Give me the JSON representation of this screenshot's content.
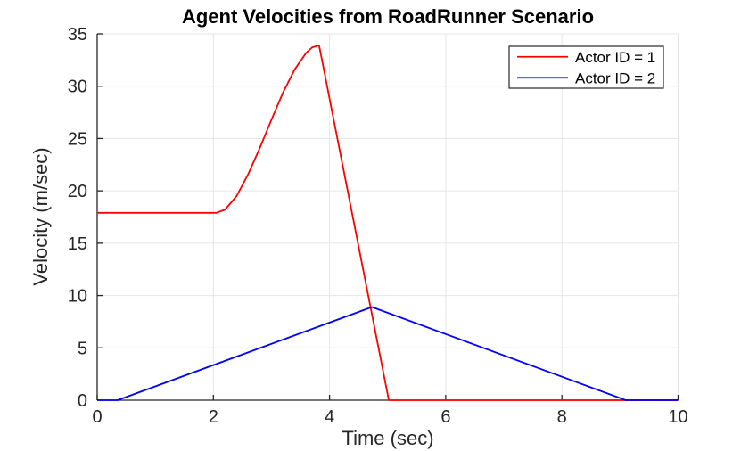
{
  "chart_data": {
    "type": "line",
    "title": "Agent Velocities from RoadRunner Scenario",
    "xlabel": "Time (sec)",
    "ylabel": "Velocity (m/sec)",
    "xlim": [
      0,
      10
    ],
    "ylim": [
      0,
      35
    ],
    "xticks": [
      0,
      2,
      4,
      6,
      8,
      10
    ],
    "yticks": [
      0,
      5,
      10,
      15,
      20,
      25,
      30,
      35
    ],
    "grid": true,
    "legend_position": "top-right",
    "series": [
      {
        "name": "Actor ID = 1",
        "color": "#ff0000",
        "points": [
          [
            0,
            17.9
          ],
          [
            2.05,
            17.9
          ],
          [
            2.2,
            18.2
          ],
          [
            2.4,
            19.5
          ],
          [
            2.6,
            21.6
          ],
          [
            2.8,
            24.1
          ],
          [
            3.0,
            26.8
          ],
          [
            3.2,
            29.4
          ],
          [
            3.4,
            31.6
          ],
          [
            3.6,
            33.2
          ],
          [
            3.7,
            33.7
          ],
          [
            3.82,
            33.9
          ],
          [
            5.02,
            0
          ],
          [
            10,
            0
          ]
        ]
      },
      {
        "name": "Actor ID = 2",
        "color": "#0000ff",
        "points": [
          [
            0,
            0
          ],
          [
            0.35,
            0
          ],
          [
            4.73,
            8.9
          ],
          [
            9.1,
            0
          ],
          [
            10,
            0
          ]
        ]
      }
    ]
  },
  "styles": {
    "grid_color": "#e6e6e6",
    "axis_color": "#262626",
    "background": "#ffffff"
  }
}
